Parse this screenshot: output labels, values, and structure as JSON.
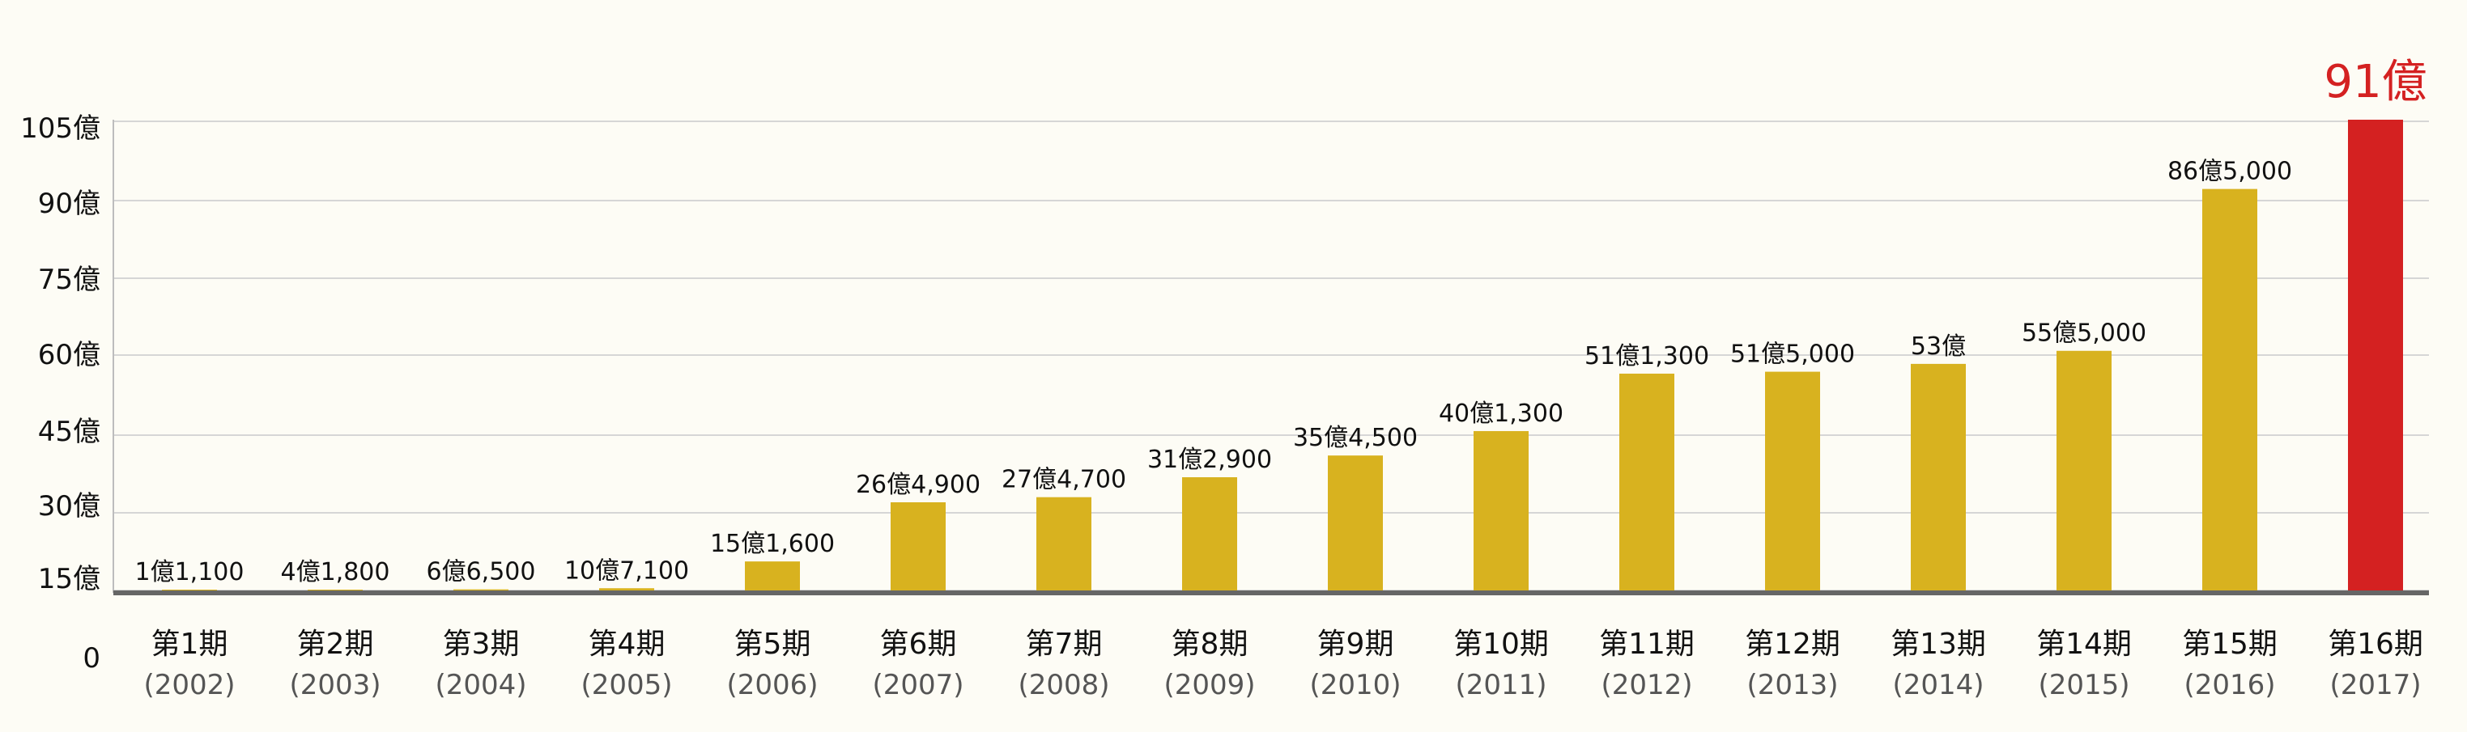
{
  "chart_data": {
    "type": "bar",
    "y_ticks": [
      "105億",
      "90億",
      "75億",
      "60億",
      "45億",
      "30億",
      "15億",
      "0"
    ],
    "periods": [
      "第1期",
      "第2期",
      "第3期",
      "第4期",
      "第5期",
      "第6期",
      "第7期",
      "第8期",
      "第9期",
      "第10期",
      "第11期",
      "第12期",
      "第13期",
      "第14期",
      "第15期",
      "第16期"
    ],
    "years": [
      "(2002)",
      "(2003)",
      "(2004)",
      "(2005)",
      "(2006)",
      "(2007)",
      "(2008)",
      "(2009)",
      "(2010)",
      "(2011)",
      "(2012)",
      "(2013)",
      "(2014)",
      "(2015)",
      "(2016)",
      "(2017)"
    ],
    "values": [
      1.11,
      4.18,
      6.65,
      10.71,
      15.16,
      26.49,
      27.47,
      31.29,
      35.45,
      40.13,
      51.13,
      51.5,
      53,
      55.5,
      86.5,
      91
    ],
    "value_labels": [
      "1億1,100",
      "4億1,800",
      "6億6,500",
      "10億7,100",
      "15億1,600",
      "26億4,900",
      "27億4,700",
      "31億2,900",
      "35億4,500",
      "40億1,300",
      "51億1,300",
      "51億5,000",
      "53億",
      "55億5,000",
      "86億5,000",
      "91億"
    ],
    "colors": {
      "bar": "#d8b21f",
      "highlight": "#d42121",
      "grid": "#d6d6d6",
      "axis": "#666666",
      "text": "#111111",
      "subtext": "#555555",
      "background": "#fdfcf5"
    },
    "highlight_index": 15,
    "grid": true
  }
}
